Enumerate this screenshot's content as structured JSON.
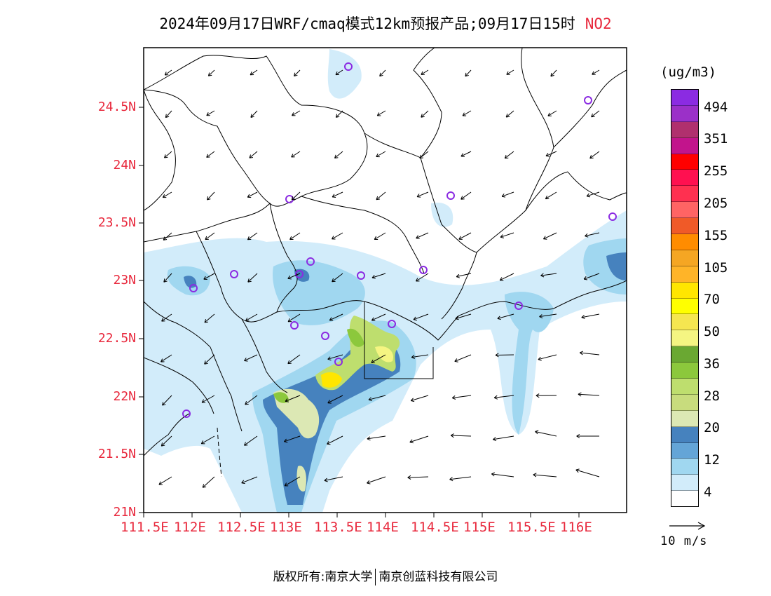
{
  "title": {
    "main": "2024年09月17日WRF/cmaq模式12km预报产品;09月17日15时",
    "pollutant": "NO2"
  },
  "colorbar": {
    "units": "(ug/m3)",
    "colors": [
      "#8b2be2",
      "#9b30c8",
      "#b0306e",
      "#c2148c",
      "#ff0000",
      "#ff1050",
      "#ff3050",
      "#ff6464",
      "#f05a28",
      "#ff8c00",
      "#f5a623",
      "#ffb428",
      "#ffe600",
      "#ffff00",
      "#f5e650",
      "#f5f582",
      "#6aa832",
      "#8cc83c",
      "#bede6e",
      "#c8dc7d",
      "#dce8b4",
      "#4682be",
      "#64a5d7",
      "#a0d7f0",
      "#d2ecfa",
      "#ffffff"
    ],
    "labels": [
      "494",
      "351",
      "255",
      "205",
      "155",
      "105",
      "70",
      "50",
      "36",
      "28",
      "20",
      "12",
      "4"
    ]
  },
  "axes": {
    "y_ticks": [
      "24.5N",
      "24N",
      "23.5N",
      "23N",
      "22.5N",
      "22N",
      "21.5N",
      "21N"
    ],
    "x_ticks": [
      "111.5E",
      "112E",
      "112.5E",
      "113E",
      "113.5E",
      "114E",
      "114.5E",
      "115E",
      "115.5E",
      "116E"
    ]
  },
  "wind_reference": "10 m/s",
  "footer": {
    "left": "版权所有:南京大学",
    "right": "南京创蓝科技有限公司"
  }
}
